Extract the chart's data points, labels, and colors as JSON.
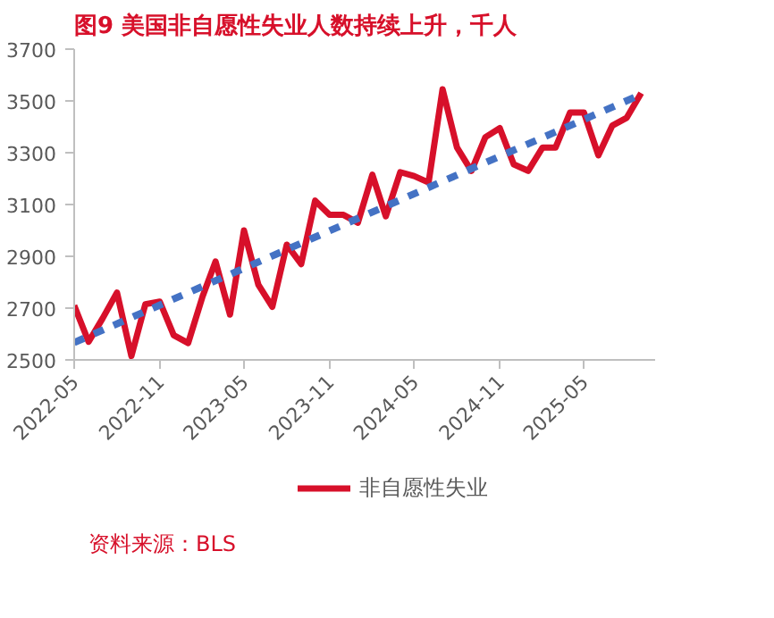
{
  "chart_data": {
    "type": "line",
    "title": "图9  美国非自愿性失业人数持续上升，千人",
    "x": [
      "2022-05",
      "2022-06",
      "2022-07",
      "2022-08",
      "2022-09",
      "2022-10",
      "2022-11",
      "2022-12",
      "2023-01",
      "2023-02",
      "2023-03",
      "2023-04",
      "2023-05",
      "2023-06",
      "2023-07",
      "2023-08",
      "2023-09",
      "2023-10",
      "2023-11",
      "2023-12",
      "2024-01",
      "2024-02",
      "2024-03",
      "2024-04",
      "2024-05",
      "2024-06",
      "2024-07",
      "2024-08",
      "2024-09",
      "2024-10",
      "2024-11",
      "2024-12",
      "2025-01",
      "2025-02",
      "2025-03",
      "2025-04",
      "2025-05",
      "2025-06",
      "2025-07",
      "2025-08",
      "2025-09"
    ],
    "series": [
      {
        "name": "非自愿性失业",
        "color": "#d7102a",
        "values": [
          2710,
          2570,
          2660,
          2760,
          2515,
          2715,
          2725,
          2595,
          2565,
          2745,
          2880,
          2675,
          3000,
          2790,
          2705,
          2945,
          2870,
          3115,
          3060,
          3060,
          3030,
          3215,
          3055,
          3225,
          3210,
          3185,
          3545,
          3320,
          3230,
          3360,
          3395,
          3255,
          3230,
          3320,
          3320,
          3455,
          3455,
          3290,
          3405,
          3435,
          3530
        ]
      },
      {
        "type": "line",
        "color": "#4472c4",
        "line_style": "dashed",
        "x": [
          "2022-05",
          "2025-09"
        ],
        "values": [
          2567,
          3525
        ]
      }
    ],
    "xlim": [
      "2022-05",
      "2025-10"
    ],
    "xticks": [
      "2022-05",
      "2022-11",
      "2023-05",
      "2023-11",
      "2024-05",
      "2024-11",
      "2025-05"
    ],
    "ylim": [
      2500,
      3700
    ],
    "yticks": [
      2500,
      2700,
      2900,
      3100,
      3300,
      3500,
      3700
    ],
    "grid": false,
    "legend": "bottom",
    "line_style": "solid",
    "marker": "none",
    "annotations": [
      "资料来源：BLS"
    ]
  }
}
